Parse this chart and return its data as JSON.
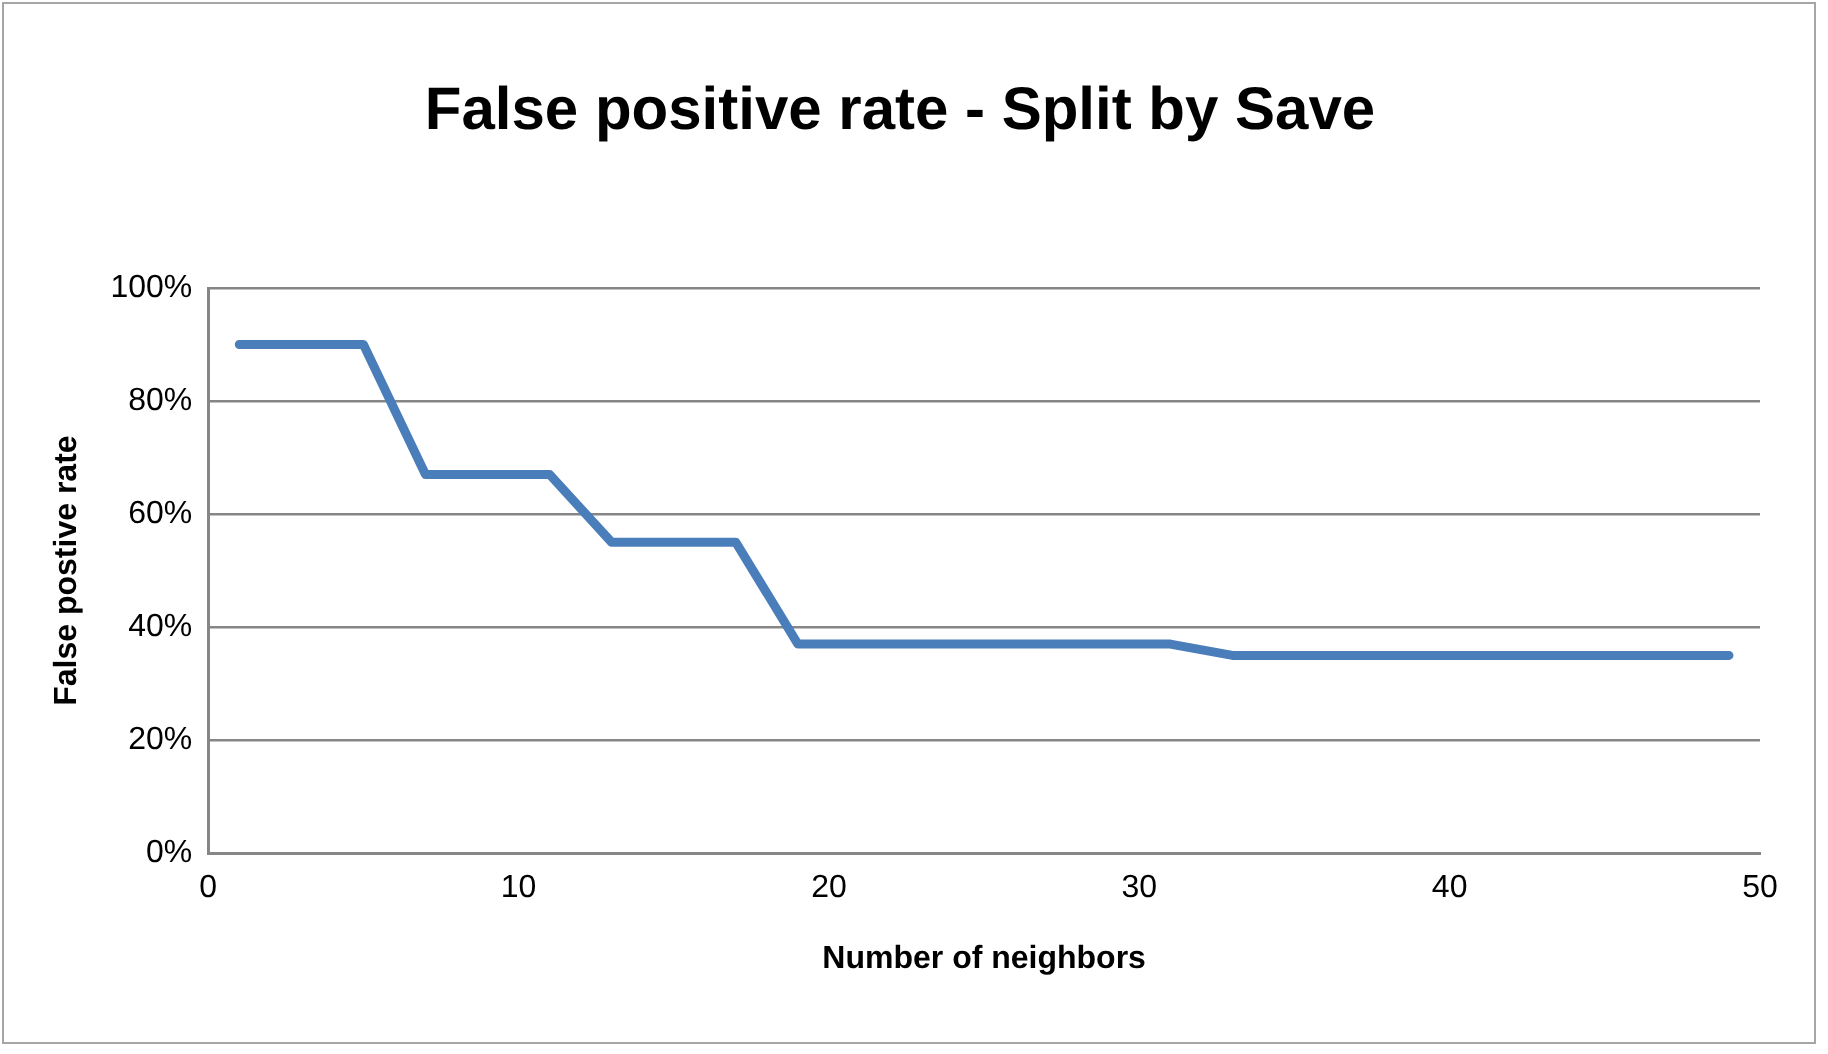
{
  "chart_data": {
    "type": "line",
    "title": "False positive rate - Split by Save",
    "xlabel": "Number of neighbors",
    "ylabel": "False postive rate",
    "x": [
      1,
      5,
      7,
      11,
      13,
      17,
      19,
      31,
      33,
      49
    ],
    "series": [
      {
        "color": "#4a7ebb",
        "values": [
          90,
          90,
          67,
          67,
          55,
          55,
          37,
          37,
          35,
          35
        ]
      }
    ],
    "xlim": [
      0,
      50
    ],
    "xticks": [
      0,
      10,
      20,
      30,
      40,
      50
    ],
    "ylim": [
      0,
      100
    ],
    "yticks": [
      {
        "value": 0,
        "label": "0%"
      },
      {
        "value": 20,
        "label": "20%"
      },
      {
        "value": 40,
        "label": "40%"
      },
      {
        "value": 60,
        "label": "60%"
      },
      {
        "value": 80,
        "label": "80%"
      },
      {
        "value": 100,
        "label": "100%"
      }
    ],
    "grid": "y",
    "legend": false,
    "marker": "none",
    "line_style": "solid"
  }
}
